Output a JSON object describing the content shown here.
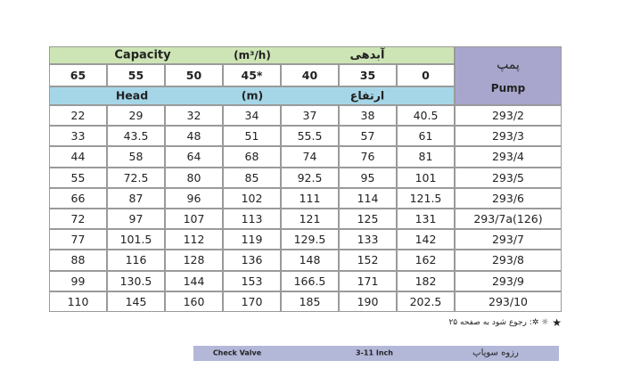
{
  "table": {
    "capacity_label": "Capacity",
    "capacity_unit": "(m³/h)",
    "capacity_label_fa": "آبدهی",
    "capacities": [
      65,
      55,
      50,
      "45*",
      40,
      35,
      0
    ],
    "head_label": "Head",
    "head_unit": "(m)",
    "head_label_fa": "ارتفاع",
    "pump_label_fa": "پمپ",
    "pump_label": "Pump",
    "rows": [
      {
        "pump": "293/2",
        "values": [
          22,
          29,
          32,
          34,
          37,
          38,
          40.5
        ]
      },
      {
        "pump": "293/3",
        "values": [
          33,
          43.5,
          48,
          51,
          55.5,
          57,
          61
        ]
      },
      {
        "pump": "293/4",
        "values": [
          44,
          58,
          64,
          68,
          74,
          76,
          81
        ]
      },
      {
        "pump": "293/5",
        "values": [
          55,
          72.5,
          80,
          85,
          92.5,
          95,
          101
        ]
      },
      {
        "pump": "293/6",
        "values": [
          66,
          87,
          96,
          102,
          111,
          114,
          121.5
        ]
      },
      {
        "pump": "293/7a(126)",
        "values": [
          72,
          97,
          107,
          113,
          121,
          125,
          131
        ]
      },
      {
        "pump": "293/7",
        "values": [
          77,
          101.5,
          112,
          119,
          129.5,
          133,
          142
        ]
      },
      {
        "pump": "293/8",
        "values": [
          88,
          116,
          128,
          136,
          148,
          152,
          162
        ]
      },
      {
        "pump": "293/9",
        "values": [
          99,
          130.5,
          144,
          153,
          166.5,
          171,
          182
        ]
      },
      {
        "pump": "293/10",
        "values": [
          110,
          145,
          160,
          170,
          185,
          190,
          202.5
        ]
      }
    ]
  },
  "note": {
    "symbol": "★",
    "text": "☼ ✲: رجوع شود به صفحه ۲۵"
  },
  "footer": {
    "label": "Check Valve",
    "size": "3-11 Inch",
    "label_fa": "رزوه سوپاپ"
  }
}
